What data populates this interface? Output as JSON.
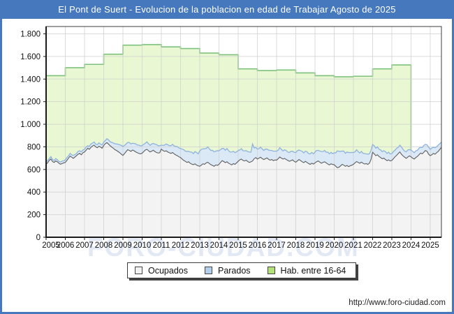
{
  "header": {
    "title": "El Pont de Suert - Evolucion de la poblacion en edad de Trabajar Agosto de 2025"
  },
  "watermark": {
    "text": "FORO-CIUDAD.COM"
  },
  "footer": {
    "url": "http://www.foro-ciudad.com"
  },
  "colors": {
    "frame_blue": "#4678be",
    "title_text": "#ffffff",
    "plot_background": "#ffffff",
    "grid": "#cfcfcf",
    "axis": "#3c3c3c",
    "tick_text": "#111111",
    "watermark": "#6e91c8"
  },
  "legend": {
    "items": [
      {
        "label": "Ocupados",
        "swatch": "#f2f2f2"
      },
      {
        "label": "Parados",
        "swatch": "#b4cfec"
      },
      {
        "label": "Hab. entre 16-64",
        "swatch": "#b4e07a"
      }
    ]
  },
  "chart_data": {
    "type": "area",
    "title": "El Pont de Suert - Evolucion de la poblacion en edad de Trabajar Agosto de 2025",
    "xlabel": "",
    "ylabel": "",
    "x_years": [
      "2005",
      "2006",
      "2007",
      "2008",
      "2009",
      "2010",
      "2011",
      "2012",
      "2013",
      "2014",
      "2015",
      "2016",
      "2017",
      "2018",
      "2019",
      "2020",
      "2021",
      "2022",
      "2023",
      "2024",
      "2025"
    ],
    "y_tick_values": [
      0,
      200,
      400,
      600,
      800,
      1000,
      1200,
      1400,
      1600,
      1800
    ],
    "y_tick_labels": [
      "0",
      "200",
      "400",
      "600",
      "800",
      "1.000",
      "1.200",
      "1.400",
      "1.600",
      "1.800"
    ],
    "ylim": [
      0,
      1865
    ],
    "n_months": 248,
    "time_note": "monthly points Jan 2005 - Aug 2025",
    "grid": true,
    "legend_position": "bottom",
    "series_hab": {
      "name": "Hab. entre 16-64",
      "years": [
        2005,
        2006,
        2007,
        2008,
        2009,
        2010,
        2011,
        2012,
        2013,
        2014,
        2015,
        2016,
        2017,
        2018,
        2019,
        2020,
        2021,
        2022,
        2023
      ],
      "values": [
        1430,
        1500,
        1530,
        1620,
        1700,
        1705,
        1685,
        1670,
        1630,
        1615,
        1490,
        1475,
        1480,
        1455,
        1430,
        1420,
        1425,
        1490,
        1525
      ],
      "ends_month_index": 228,
      "fill": "#e9f8d2",
      "line": "#7cc27c"
    },
    "series_ocupados": {
      "name": "Ocupados",
      "fill": "#f3f3f3",
      "line": "#5f5f5f",
      "monthly_by_year": [
        [
          645,
          660,
          680,
          692,
          670,
          662,
          675,
          668,
          655,
          646,
          652,
          658
        ],
        [
          662,
          680,
          700,
          718,
          708,
          698,
          710,
          722,
          735,
          742,
          730,
          748
        ],
        [
          755,
          770,
          788,
          778,
          795,
          808,
          815,
          800,
          792,
          805,
          798,
          788
        ],
        [
          812,
          828,
          838,
          824,
          810,
          798,
          788,
          775,
          768,
          758,
          748,
          735
        ],
        [
          724,
          740,
          758,
          775,
          768,
          760,
          772,
          765,
          755,
          748,
          742,
          738
        ],
        [
          744,
          758,
          772,
          778,
          765,
          755,
          762,
          770,
          758,
          750,
          745,
          748
        ],
        [
          780,
          768,
          760,
          765,
          755,
          748,
          742,
          750,
          738,
          728,
          722,
          712
        ],
        [
          705,
          692,
          680,
          672,
          662,
          668,
          655,
          648,
          642,
          650,
          638,
          632
        ],
        [
          628,
          638,
          650,
          645,
          658,
          664,
          652,
          642,
          635,
          628,
          640,
          636
        ],
        [
          645,
          662,
          678,
          670,
          660,
          668,
          655,
          648,
          640,
          652,
          645,
          658
        ],
        [
          672,
          685,
          692,
          680,
          675,
          682,
          670,
          662,
          668,
          675,
          695,
          705
        ],
        [
          692,
          700,
          708,
          696,
          688,
          695,
          702,
          690,
          682,
          688,
          678,
          684
        ],
        [
          682,
          695,
          710,
          700,
          692,
          698,
          688,
          680,
          672,
          678,
          685,
          672
        ],
        [
          664,
          676,
          688,
          678,
          668,
          660,
          672,
          662,
          652,
          645,
          655,
          648
        ],
        [
          658,
          668,
          675,
          665,
          655,
          662,
          668,
          658,
          648,
          640,
          650,
          644
        ],
        [
          642,
          628,
          615,
          620,
          632,
          645,
          638,
          628,
          635,
          625,
          632,
          638
        ],
        [
          645,
          658,
          670,
          662,
          655,
          665,
          655,
          648,
          652,
          645,
          655,
          688
        ],
        [
          752,
          738,
          722,
          730,
          715,
          705,
          695,
          700,
          688,
          678,
          685,
          675
        ],
        [
          680,
          695,
          712,
          725,
          740,
          755,
          735,
          720,
          708,
          698,
          710,
          720
        ],
        [
          712,
          700,
          692,
          705,
          715,
          730,
          745,
          738,
          752,
          768,
          760,
          735
        ],
        [
          722,
          730,
          742,
          735,
          748,
          760,
          778,
          795
        ]
      ]
    },
    "series_parados": {
      "name": "Parados",
      "stacked_on": "Ocupados",
      "fill": "#dbe9f7",
      "line": "#8fb3dc",
      "monthly_by_year": [
        [
          18,
          20,
          16,
          22,
          19,
          17,
          21,
          18,
          16,
          20,
          22,
          19
        ],
        [
          22,
          25,
          20,
          24,
          21,
          26,
          22,
          20,
          25,
          23,
          26,
          24
        ],
        [
          24,
          28,
          22,
          26,
          30,
          25,
          28,
          24,
          27,
          30,
          26,
          29
        ],
        [
          30,
          28,
          34,
          38,
          35,
          42,
          46,
          52,
          58,
          64,
          70,
          78
        ],
        [
          80,
          72,
          68,
          64,
          70,
          66,
          60,
          65,
          72,
          68,
          74,
          70
        ],
        [
          68,
          64,
          60,
          66,
          62,
          58,
          64,
          60,
          66,
          70,
          65,
          62
        ],
        [
          35,
          45,
          55,
          60,
          64,
          62,
          68,
          72,
          70,
          76,
          80,
          78
        ],
        [
          80,
          88,
          95,
          90,
          98,
          92,
          100,
          105,
          98,
          108,
          112,
          106
        ],
        [
          135,
          140,
          132,
          138,
          128,
          136,
          130,
          126,
          134,
          128,
          122,
          130
        ],
        [
          120,
          114,
          108,
          115,
          110,
          118,
          112,
          106,
          114,
          108,
          104,
          98
        ],
        [
          95,
          88,
          92,
          86,
          90,
          84,
          88,
          92,
          85,
          150,
          96,
          90
        ],
        [
          88,
          84,
          90,
          86,
          80,
          85,
          78,
          82,
          86,
          80,
          84,
          78
        ],
        [
          80,
          75,
          82,
          78,
          72,
          76,
          80,
          74,
          78,
          82,
          76,
          80
        ],
        [
          85,
          90,
          84,
          88,
          92,
          86,
          90,
          95,
          88,
          92,
          96,
          90
        ],
        [
          95,
          100,
          94,
          98,
          104,
          96,
          100,
          95,
          105,
          98,
          102,
          96
        ],
        [
          105,
          118,
          150,
          140,
          128,
          118,
          124,
          115,
          120,
          125,
          118,
          112
        ],
        [
          105,
          98,
          104,
          96,
          90,
          95,
          88,
          92,
          86,
          90,
          84,
          80
        ],
        [
          68,
          72,
          66,
          70,
          64,
          68,
          62,
          66,
          70,
          64,
          68,
          62
        ],
        [
          60,
          64,
          58,
          62,
          56,
          60,
          64,
          58,
          54,
          58,
          62,
          56
        ],
        [
          58,
          62,
          56,
          60,
          54,
          58,
          52,
          56,
          60,
          54,
          58,
          62
        ],
        [
          56,
          60,
          54,
          58,
          52,
          56,
          50,
          48
        ]
      ]
    }
  }
}
